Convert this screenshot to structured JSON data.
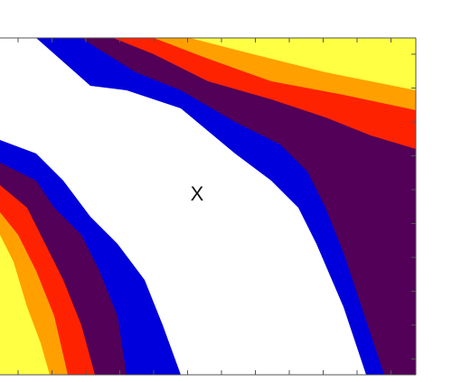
{
  "chart_data": {
    "type": "contour",
    "annotation": "X",
    "colors": [
      "#ffffff",
      "#0000dc",
      "#520058",
      "#ff2200",
      "#ffa000",
      "#ffff44"
    ]
  }
}
